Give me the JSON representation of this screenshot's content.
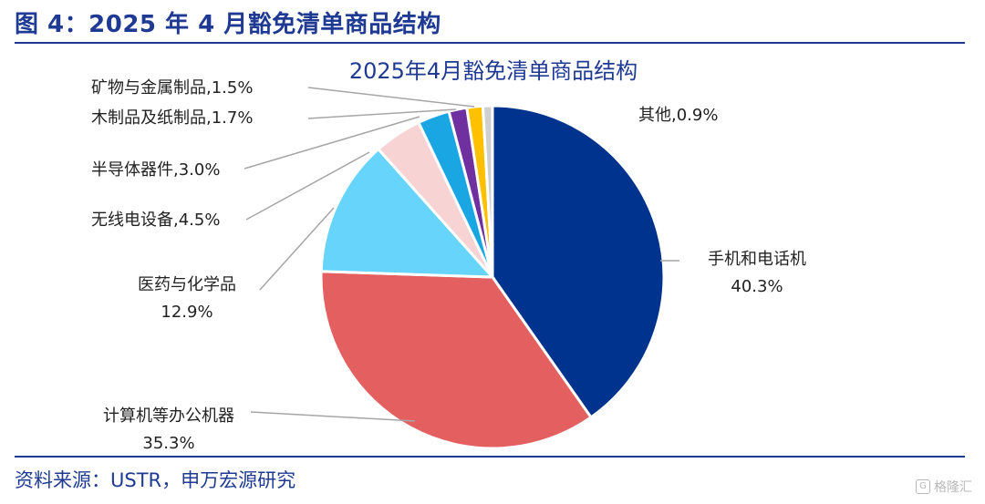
{
  "figure_title": "图 4：2025 年 4 月豁免清单商品结构",
  "source": "资料来源：USTR，申万宏源研究",
  "watermark": "格隆汇",
  "colors": {
    "accent": "#1f3a93",
    "rule": "#1f3a93"
  },
  "chart_data": {
    "type": "pie",
    "title": "2025年4月豁免清单商品结构",
    "slices": [
      {
        "name": "手机和电话机",
        "value": 40.3,
        "label_lines": [
          "手机和电话机",
          "40.3%"
        ],
        "color": "#00338d"
      },
      {
        "name": "计算机等办公机器",
        "value": 35.3,
        "label_lines": [
          "计算机等办公机器",
          "35.3%"
        ],
        "color": "#e46060"
      },
      {
        "name": "医药与化学品",
        "value": 12.9,
        "label_lines": [
          "医药与化学品",
          "12.9%"
        ],
        "color": "#66d4fb"
      },
      {
        "name": "无线电设备",
        "value": 4.5,
        "label_lines": [
          "无线电设备,4.5%"
        ],
        "color": "#f8d3d3"
      },
      {
        "name": "半导体器件",
        "value": 3.0,
        "label_lines": [
          "半导体器件,3.0%"
        ],
        "color": "#1aa6e3"
      },
      {
        "name": "木制品及纸制品",
        "value": 1.7,
        "label_lines": [
          "木制品及纸制品,1.7%"
        ],
        "color": "#6f30a0"
      },
      {
        "name": "矿物与金属制品",
        "value": 1.5,
        "label_lines": [
          "矿物与金属制品,1.5%"
        ],
        "color": "#ffc000"
      },
      {
        "name": "其他",
        "value": 0.9,
        "label_lines": [
          "其他,0.9%"
        ],
        "color": "#d0d0d0"
      }
    ]
  }
}
